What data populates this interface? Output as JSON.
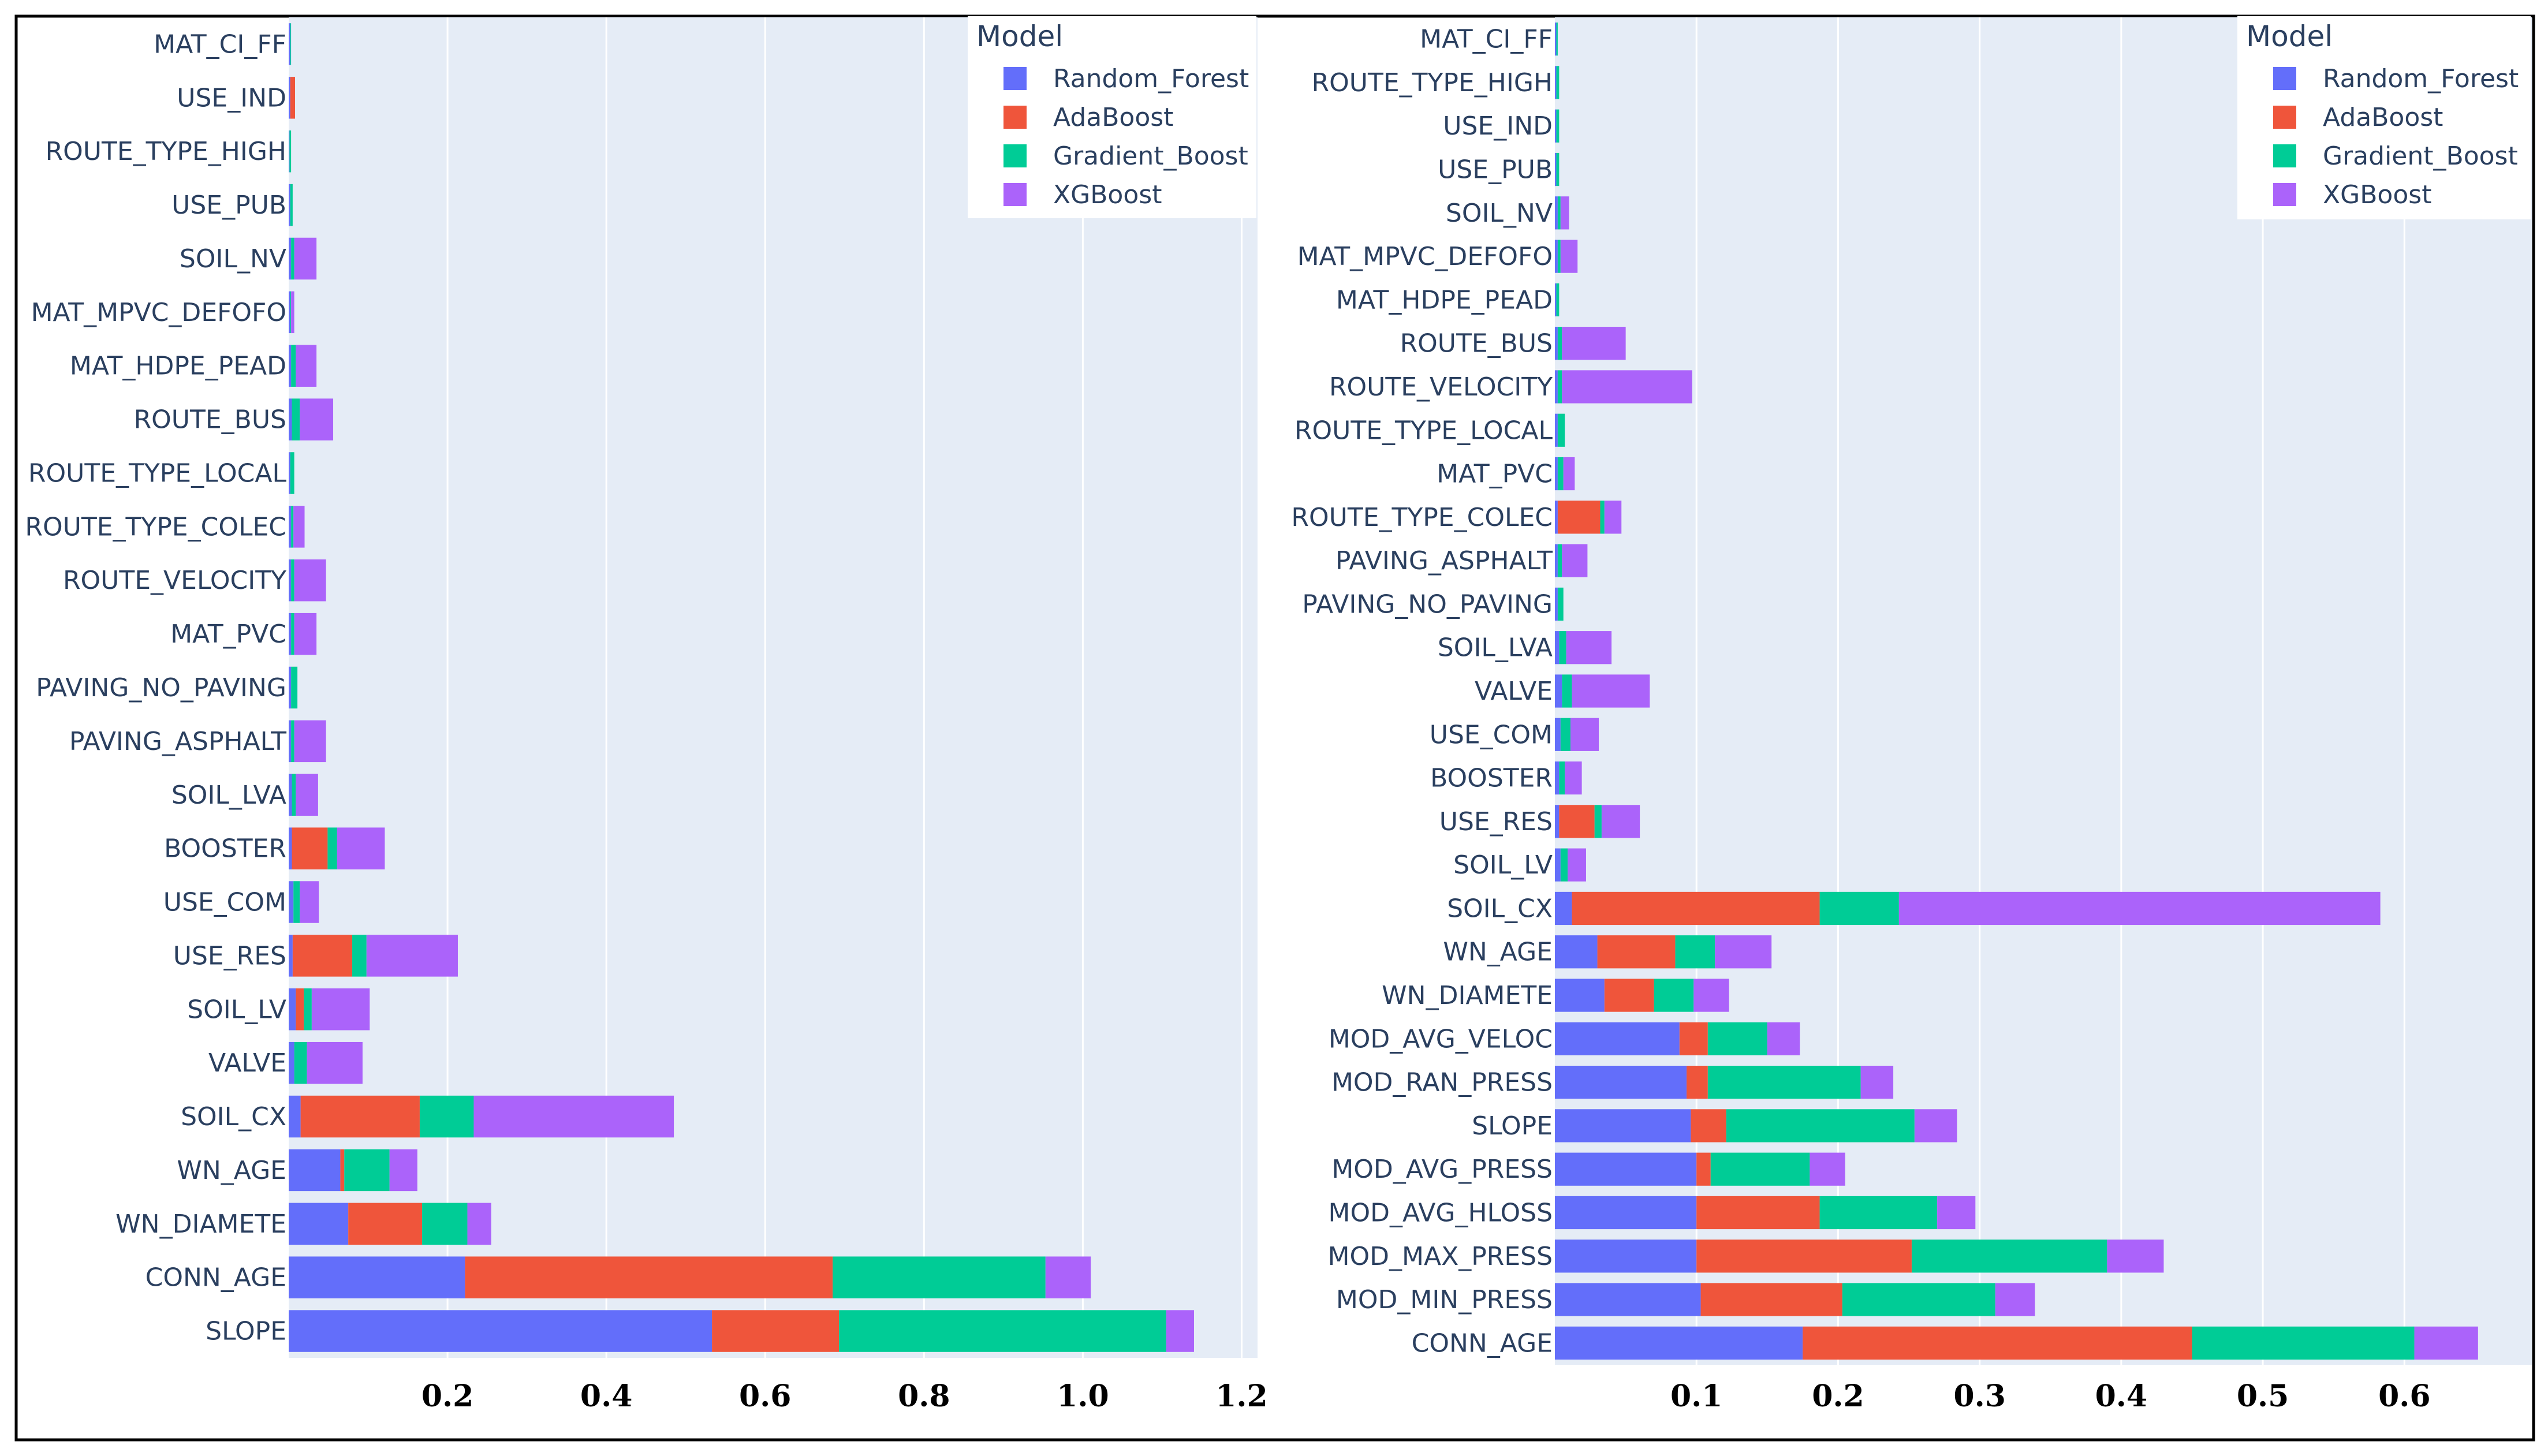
{
  "chart_data": [
    {
      "type": "bar",
      "orientation": "horizontal",
      "stacked": true,
      "legend_title": "Model",
      "legend_position": "top-right",
      "xlim": [
        0,
        1.22
      ],
      "xticks": [
        0.2,
        0.4,
        0.6,
        0.8,
        1.0,
        1.2
      ],
      "xtick_labels": [
        "0.2",
        "0.4",
        "0.6",
        "0.8",
        "1.0",
        "1.2"
      ],
      "categories": [
        "MAT_CI_FF",
        "USE_IND",
        "ROUTE_TYPE_HIGH",
        "USE_PUB",
        "SOIL_NV",
        "MAT_MPVC_DEFOFO",
        "MAT_HDPE_PEAD",
        "ROUTE_BUS",
        "ROUTE_TYPE_LOCAL",
        "ROUTE_TYPE_COLEC",
        "ROUTE_VELOCITY",
        "MAT_PVC",
        "PAVING_NO_PAVING",
        "PAVING_ASPHALT",
        "SOIL_LVA",
        "BOOSTER",
        "USE_COM",
        "USE_RES",
        "SOIL_LV",
        "VALVE",
        "SOIL_CX",
        "WN_AGE",
        "WN_DIAMETE",
        "CONN_AGE",
        "SLOPE"
      ],
      "series": [
        {
          "name": "Random_Forest",
          "values": [
            0.002,
            0.002,
            0.001,
            0.002,
            0.003,
            0.002,
            0.003,
            0.004,
            0.002,
            0.003,
            0.003,
            0.003,
            0.003,
            0.003,
            0.004,
            0.004,
            0.006,
            0.005,
            0.009,
            0.007,
            0.015,
            0.065,
            0.075,
            0.222,
            0.533
          ]
        },
        {
          "name": "AdaBoost",
          "values": [
            0.0,
            0.006,
            0.0,
            0.0,
            0.0,
            0.0,
            0.0,
            0.0,
            0.0,
            0.0,
            0.0,
            0.0,
            0.0,
            0.0,
            0.0,
            0.045,
            0.0,
            0.075,
            0.01,
            0.0,
            0.15,
            0.005,
            0.093,
            0.463,
            0.16
          ]
        },
        {
          "name": "Gradient_Boost",
          "values": [
            0.001,
            0.0,
            0.002,
            0.003,
            0.004,
            0.001,
            0.006,
            0.01,
            0.005,
            0.003,
            0.004,
            0.004,
            0.008,
            0.004,
            0.005,
            0.012,
            0.008,
            0.018,
            0.01,
            0.016,
            0.068,
            0.057,
            0.057,
            0.268,
            0.412
          ]
        },
        {
          "name": "XGBoost",
          "values": [
            0.0,
            0.0,
            0.0,
            0.0,
            0.028,
            0.004,
            0.026,
            0.042,
            0.0,
            0.014,
            0.04,
            0.028,
            0.0,
            0.04,
            0.028,
            0.06,
            0.024,
            0.115,
            0.073,
            0.07,
            0.252,
            0.035,
            0.03,
            0.057,
            0.035
          ]
        }
      ]
    },
    {
      "type": "bar",
      "orientation": "horizontal",
      "stacked": true,
      "legend_title": "Model",
      "legend_position": "top-right",
      "xlim": [
        0,
        0.69
      ],
      "xticks": [
        0.1,
        0.2,
        0.3,
        0.4,
        0.5,
        0.6
      ],
      "xtick_labels": [
        "0.1",
        "0.2",
        "0.3",
        "0.4",
        "0.5",
        "0.6"
      ],
      "categories": [
        "MAT_CI_FF",
        "ROUTE_TYPE_HIGH",
        "USE_IND",
        "USE_PUB",
        "SOIL_NV",
        "MAT_MPVC_DEFOFO",
        "MAT_HDPE_PEAD",
        "ROUTE_BUS",
        "ROUTE_VELOCITY",
        "ROUTE_TYPE_LOCAL",
        "MAT_PVC",
        "ROUTE_TYPE_COLEC",
        "PAVING_ASPHALT",
        "PAVING_NO_PAVING",
        "SOIL_LVA",
        "VALVE",
        "USE_COM",
        "BOOSTER",
        "USE_RES",
        "SOIL_LV",
        "SOIL_CX",
        "WN_AGE",
        "WN_DIAMETE",
        "MOD_AVG_VELOC",
        "MOD_RAN_PRESS",
        "SLOPE",
        "MOD_AVG_PRESS",
        "MOD_AVG_HLOSS",
        "MOD_MAX_PRESS",
        "MOD_MIN_PRESS",
        "CONN_AGE"
      ],
      "series": [
        {
          "name": "Random_Forest",
          "values": [
            0.001,
            0.001,
            0.001,
            0.001,
            0.002,
            0.002,
            0.001,
            0.002,
            0.002,
            0.002,
            0.002,
            0.002,
            0.002,
            0.002,
            0.003,
            0.005,
            0.004,
            0.003,
            0.003,
            0.004,
            0.012,
            0.03,
            0.035,
            0.088,
            0.093,
            0.096,
            0.1,
            0.1,
            0.1,
            0.103,
            0.175
          ]
        },
        {
          "name": "AdaBoost",
          "values": [
            0.0,
            0.0,
            0.0,
            0.0,
            0.0,
            0.0,
            0.0,
            0.0,
            0.0,
            0.0,
            0.0,
            0.03,
            0.0,
            0.0,
            0.0,
            0.0,
            0.0,
            0.0,
            0.025,
            0.0,
            0.175,
            0.055,
            0.035,
            0.02,
            0.015,
            0.025,
            0.01,
            0.087,
            0.152,
            0.1,
            0.275
          ]
        },
        {
          "name": "Gradient_Boost",
          "values": [
            0.001,
            0.002,
            0.002,
            0.002,
            0.002,
            0.002,
            0.002,
            0.003,
            0.003,
            0.005,
            0.004,
            0.003,
            0.003,
            0.004,
            0.005,
            0.007,
            0.007,
            0.004,
            0.005,
            0.005,
            0.056,
            0.028,
            0.028,
            0.042,
            0.108,
            0.133,
            0.07,
            0.083,
            0.138,
            0.108,
            0.157
          ]
        },
        {
          "name": "XGBoost",
          "values": [
            0.0,
            0.0,
            0.0,
            0.0,
            0.006,
            0.012,
            0.0,
            0.045,
            0.092,
            0.0,
            0.008,
            0.012,
            0.018,
            0.0,
            0.032,
            0.055,
            0.02,
            0.012,
            0.027,
            0.013,
            0.34,
            0.04,
            0.025,
            0.023,
            0.023,
            0.03,
            0.025,
            0.027,
            0.04,
            0.028,
            0.045
          ]
        }
      ]
    }
  ],
  "colors": {
    "Random_Forest": "#636efa",
    "AdaBoost": "#ef553b",
    "Gradient_Boost": "#00cc96",
    "XGBoost": "#ab63fa",
    "plot_bg": "#e5ecf6",
    "grid": "#ffffff",
    "text": "#2a3f5f"
  }
}
